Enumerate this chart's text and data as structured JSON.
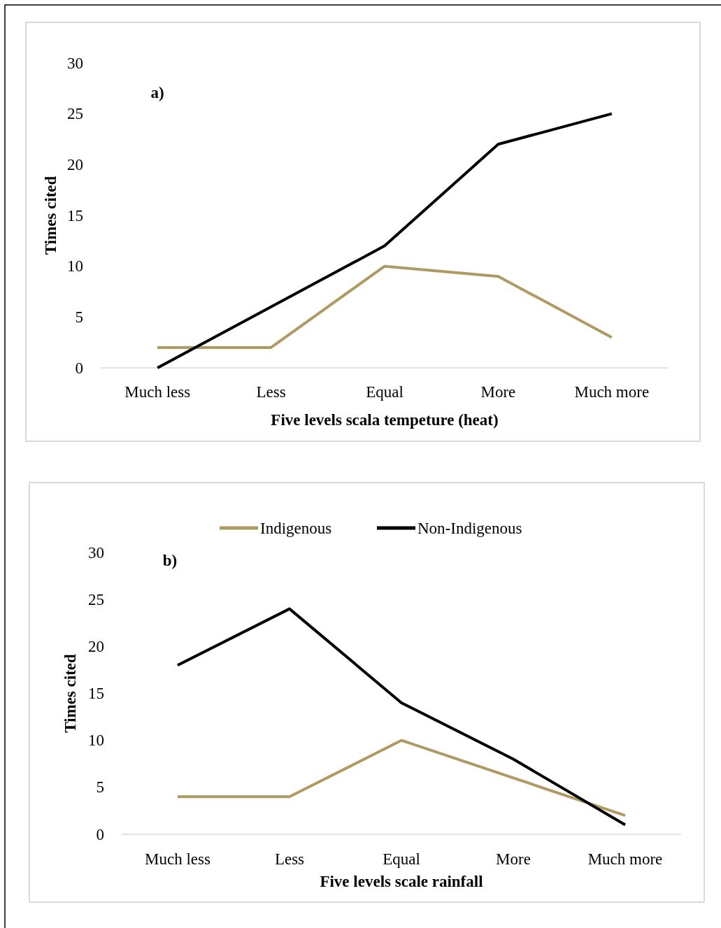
{
  "chart_data": [
    {
      "type": "line",
      "xlabel": "Five levels scala tempeture (heat)",
      "ylabel": "Times cited",
      "annotations": [
        "a)"
      ],
      "categories": [
        "Much less",
        "Less",
        "Equal",
        "More",
        "Much more"
      ],
      "ylim": [
        0,
        30
      ],
      "yticks": [
        0,
        5,
        10,
        15,
        20,
        25,
        30
      ],
      "grid": false,
      "legend": false,
      "series": [
        {
          "color": "#b09a64",
          "values": [
            2,
            2,
            10,
            9,
            3
          ]
        },
        {
          "color": "#000000",
          "values": [
            0,
            6,
            12,
            22,
            25
          ]
        }
      ]
    },
    {
      "type": "line",
      "xlabel": "Five levels scale rainfall",
      "ylabel": "Times cited",
      "annotations": [
        "b)"
      ],
      "categories": [
        "Much less",
        "Less",
        "Equal",
        "More",
        "Much more"
      ],
      "ylim": [
        0,
        30
      ],
      "yticks": [
        0,
        5,
        10,
        15,
        20,
        25,
        30
      ],
      "grid": false,
      "legend": "top",
      "series": [
        {
          "name": "Indigenous",
          "color": "#b09a64",
          "values": [
            4,
            4,
            10,
            6,
            2
          ]
        },
        {
          "name": "Non-Indigenous",
          "color": "#000000",
          "values": [
            18,
            24,
            14,
            8,
            1
          ]
        }
      ]
    }
  ]
}
